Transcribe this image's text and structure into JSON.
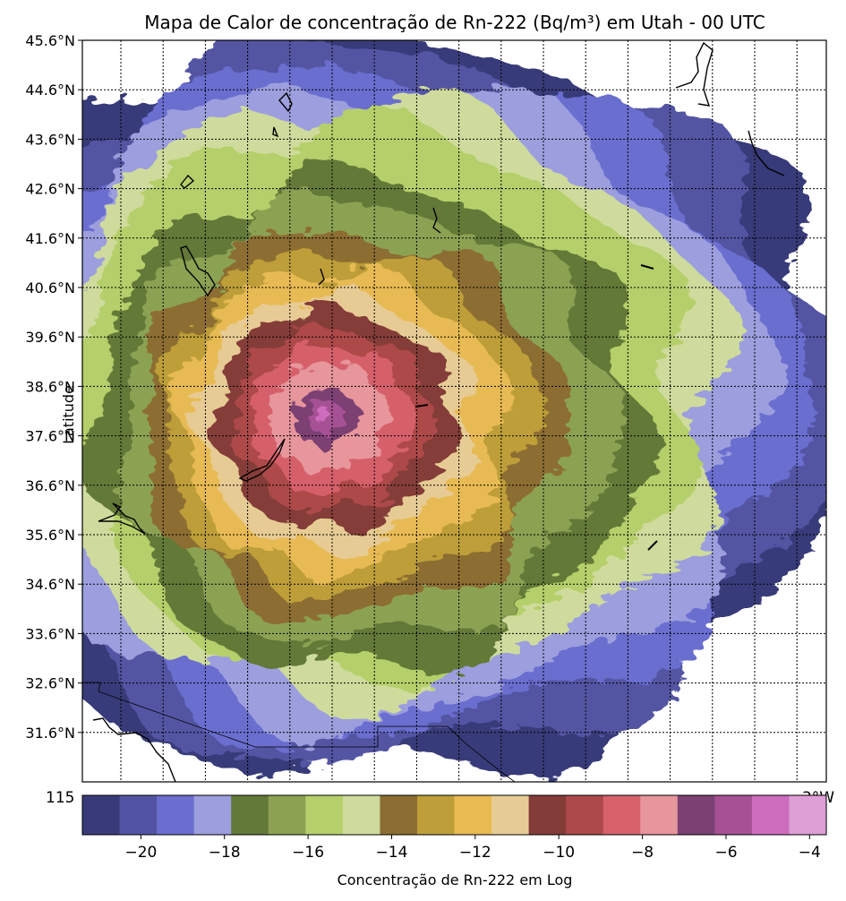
{
  "title": "Mapa de Calor de concentração de Rn-222 (Bq/m³) em Utah - 00 UTC",
  "ylabel": "Latitude",
  "lat_ticks": [
    "45.6°N",
    "44.6°N",
    "43.6°N",
    "42.6°N",
    "41.6°N",
    "40.6°N",
    "39.6°N",
    "38.6°N",
    "37.6°N",
    "36.6°N",
    "35.6°N",
    "34.6°N",
    "33.6°N",
    "32.6°N",
    "31.6°N"
  ],
  "lon_tick_first": "115",
  "lon_tick_last": "3°W",
  "colorbar": {
    "label": "Concentração de Rn-222 em Log",
    "ticks": [
      "−20",
      "−18",
      "−16",
      "−14",
      "−12",
      "−10",
      "−8",
      "−6",
      "−4"
    ],
    "colors": [
      "#393b79",
      "#5254a3",
      "#6b6ecf",
      "#9c9ede",
      "#637939",
      "#8ca252",
      "#b5cf6b",
      "#cedb9c",
      "#8c6d31",
      "#bd9e39",
      "#e7ba52",
      "#e7cb94",
      "#843c39",
      "#ad494a",
      "#d6616b",
      "#e7969c",
      "#7b4173",
      "#a55194",
      "#ce6dbd",
      "#de9ed6"
    ]
  },
  "chart_data": {
    "type": "heatmap",
    "title": "Mapa de Calor de concentração de Rn-222 (Bq/m³) em Utah - 00 UTC",
    "ylabel": "Latitude",
    "y_range": [
      30.6,
      45.6
    ],
    "y_ticks": [
      45.6,
      44.6,
      43.6,
      42.6,
      41.6,
      40.6,
      39.6,
      38.6,
      37.6,
      36.6,
      35.6,
      34.6,
      33.6,
      32.6,
      31.6
    ],
    "colorbar_range": [
      -21.4,
      -3.6
    ],
    "colorbar_ticks": [
      -20,
      -18,
      -16,
      -14,
      -12,
      -10,
      -8,
      -6,
      -4
    ],
    "n_levels": 20,
    "grid": true,
    "source_center": {
      "lat": 37.8
    }
  }
}
